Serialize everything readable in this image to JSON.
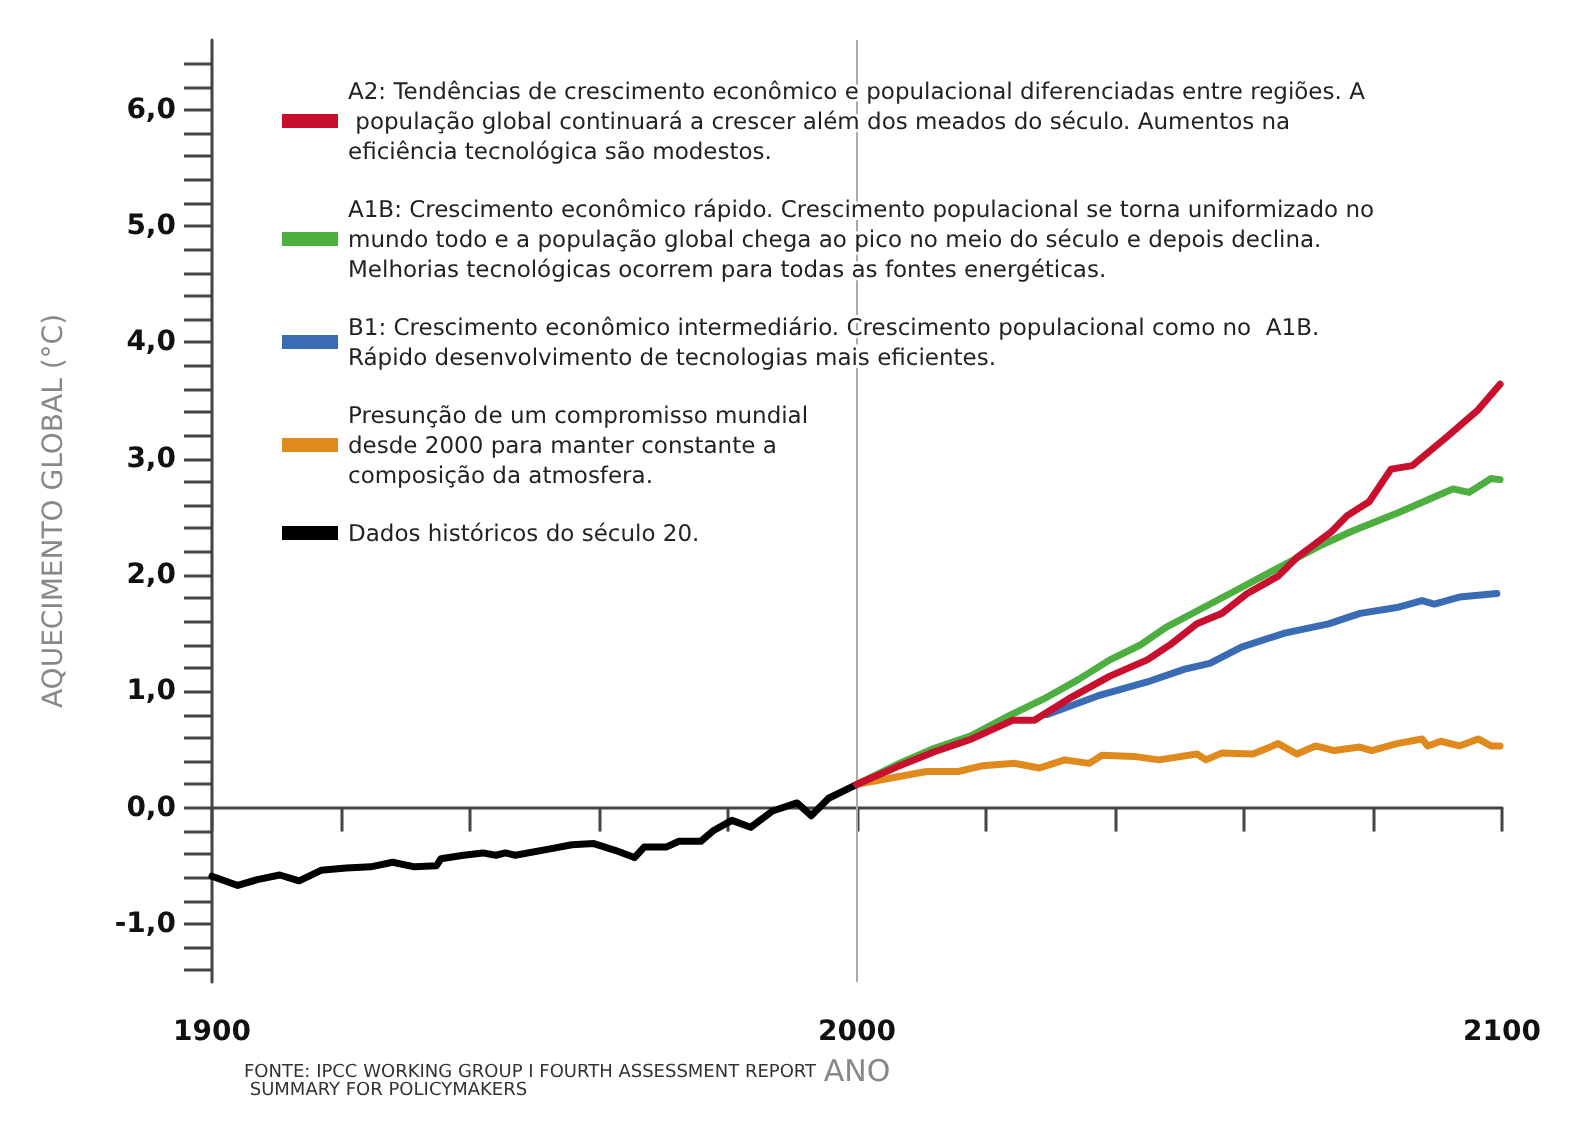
{
  "chart_data": {
    "type": "line",
    "xlabel": "ANO",
    "ylabel": "AQUECIMENTO GLOBAL (°C)",
    "annotations": [
      "FONTE: IPCC WORKING GROUP I FOURTH ASSESSMENT REPORT SUMMARY FOR POLICYMAKERS"
    ],
    "xlim": [
      1900,
      2100
    ],
    "xticks": [
      1900,
      {
        "value": 1920,
        "label": null
      },
      {
        "value": 1940,
        "label": null
      },
      {
        "value": 1960,
        "label": null
      },
      {
        "value": 1980,
        "label": null
      },
      2000,
      {
        "value": 2020,
        "label": null
      },
      {
        "value": 2040,
        "label": null
      },
      {
        "value": 2060,
        "label": null
      },
      {
        "value": 2080,
        "label": null
      },
      2100
    ],
    "ylim": [
      -1.5,
      6.6
    ],
    "yticks": [
      {
        "value": -1.4,
        "label": null
      },
      {
        "value": -1.2,
        "label": null
      },
      {
        "value": -1,
        "label": "-1,0"
      },
      {
        "value": -0.8,
        "label": null
      },
      {
        "value": -0.6,
        "label": null
      },
      {
        "value": -0.4,
        "label": null
      },
      {
        "value": -0.2,
        "label": null
      },
      {
        "value": 0,
        "label": "0,0"
      },
      {
        "value": 0.2,
        "label": null
      },
      {
        "value": 0.4,
        "label": null
      },
      {
        "value": 0.6,
        "label": null
      },
      {
        "value": 0.8,
        "label": null
      },
      {
        "value": 1,
        "label": "1,0"
      },
      {
        "value": 1.2,
        "label": null
      },
      {
        "value": 1.4,
        "label": null
      },
      {
        "value": 1.6,
        "label": null
      },
      {
        "value": 1.8,
        "label": null
      },
      {
        "value": 2,
        "label": "2,0"
      },
      {
        "value": 2.2,
        "label": null
      },
      {
        "value": 2.4,
        "label": null
      },
      {
        "value": 2.6,
        "label": null
      },
      {
        "value": 2.8,
        "label": null
      },
      {
        "value": 3,
        "label": "3,0"
      },
      {
        "value": 3.2,
        "label": null
      },
      {
        "value": 3.4,
        "label": null
      },
      {
        "value": 3.6,
        "label": null
      },
      {
        "value": 3.8,
        "label": null
      },
      {
        "value": 4,
        "label": "4,0"
      },
      {
        "value": 4.2,
        "label": null
      },
      {
        "value": 4.4,
        "label": null
      },
      {
        "value": 4.6,
        "label": null
      },
      {
        "value": 4.8,
        "label": null
      },
      {
        "value": 5,
        "label": "5,0"
      },
      {
        "value": 5.2,
        "label": null
      },
      {
        "value": 5.4,
        "label": null
      },
      {
        "value": 5.6,
        "label": null
      },
      {
        "value": 5.8,
        "label": null
      },
      {
        "value": 6,
        "label": "6,0"
      },
      {
        "value": 6.2,
        "label": null
      },
      {
        "value": 6.4,
        "label": null
      }
    ],
    "grid": false,
    "legend": "top left",
    "marker": "none",
    "line_style": "solid",
    "ref_lines": [
      {
        "axis": "x",
        "value": 2000,
        "label": null,
        "color": "#aaaaaa"
      }
    ],
    "series": [
      {
        "name": "A2: Tendências de crescimento econômico e populacional diferenciadas entre regiões. A população global continuará a crescer além dos meados do século. Aumentos na eficiência tecnológica são modestos.",
        "color": "#c8102e",
        "x": [
          2000,
          2006.2,
          2012,
          2017.8,
          2024.1,
          2027.5,
          2033.3,
          2039.2,
          2045,
          2048.8,
          2052.7,
          2056.6,
          2060.5,
          2065.3,
          2068.2,
          2073.5,
          2076,
          2079.4,
          2082.8,
          2086.1,
          2091.5,
          2096.3,
          2099.7
        ],
        "values": [
          0.2,
          0.35,
          0.48,
          0.59,
          0.75,
          0.75,
          0.95,
          1.13,
          1.27,
          1.41,
          1.58,
          1.67,
          1.84,
          1.99,
          2.15,
          2.37,
          2.51,
          2.63,
          2.91,
          2.94,
          3.19,
          3.42,
          3.64
        ]
      },
      {
        "name": "A1B: Crescimento econômico rápido. Crescimento populacional se torna uniformizado no mundo todo e a população global chega ao pico no meio do século e depois declina. Melhorias tecnológicas ocorrem para todas as fontes energéticas.",
        "color": "#4caf3f",
        "x": [
          2000,
          2006.2,
          2012,
          2017.8,
          2023.6,
          2029.5,
          2034.3,
          2039.2,
          2044,
          2047.9,
          2052.7,
          2058.5,
          2066.3,
          2072.1,
          2076.9,
          2083.7,
          2089.5,
          2092.4,
          2094.9,
          2098.3,
          2099.7
        ],
        "values": [
          0.2,
          0.37,
          0.51,
          0.62,
          0.79,
          0.95,
          1.1,
          1.27,
          1.4,
          1.55,
          1.69,
          1.86,
          2.09,
          2.26,
          2.38,
          2.53,
          2.67,
          2.74,
          2.71,
          2.83,
          2.82
        ]
      },
      {
        "name": "B1: Crescimento econômico intermediário. Crescimento populacional como no  A1B. Rápido desenvolvimento de tecnologias mais eficientes.",
        "color": "#3a6bb5",
        "x": [
          2029.5,
          2037.3,
          2045,
          2050.8,
          2054.7,
          2059.6,
          2066.3,
          2073.1,
          2078,
          2083.7,
          2087.6,
          2089.5,
          2093.4,
          2099.2
        ],
        "values": [
          0.8,
          0.96,
          1.08,
          1.19,
          1.24,
          1.38,
          1.5,
          1.58,
          1.67,
          1.72,
          1.78,
          1.75,
          1.81,
          1.84
        ]
      },
      {
        "name": "Presunção de um compromisso mundial desde 2000 para manter constante a composição da atmosfera.",
        "color": "#e08a1e",
        "x": [
          2000,
          2010.8,
          2015.7,
          2019.5,
          2024.4,
          2028.3,
          2032.2,
          2036,
          2038,
          2042.9,
          2046.8,
          2052.7,
          2054.1,
          2056.6,
          2061.4,
          2065.3,
          2068.2,
          2071.1,
          2074,
          2077.9,
          2079.8,
          2083.7,
          2087.6,
          2088.5,
          2090.5,
          2093.4,
          2096.3,
          2098.3,
          2099.7
        ],
        "values": [
          0.2,
          0.31,
          0.31,
          0.36,
          0.38,
          0.34,
          0.41,
          0.38,
          0.45,
          0.44,
          0.41,
          0.46,
          0.41,
          0.47,
          0.46,
          0.55,
          0.46,
          0.53,
          0.49,
          0.52,
          0.49,
          0.55,
          0.59,
          0.53,
          0.57,
          0.53,
          0.59,
          0.53,
          0.53
        ]
      },
      {
        "name": "Dados históricos do século 20.",
        "color": "#000000",
        "x": [
          1900,
          1904,
          1907,
          1910.5,
          1913.5,
          1916.9,
          1920.8,
          1924.6,
          1928,
          1931.4,
          1934.8,
          1935.5,
          1939,
          1942,
          1944,
          1945.5,
          1947,
          1952,
          1955.8,
          1959.2,
          1962.6,
          1965.5,
          1967,
          1970.4,
          1972.4,
          1975.8,
          1977.7,
          1980.6,
          1983.5,
          1986.9,
          1990.7,
          1992.9,
          1995.6,
          2000
        ],
        "values": [
          -0.59,
          -0.67,
          -0.62,
          -0.58,
          -0.63,
          -0.54,
          -0.52,
          -0.51,
          -0.47,
          -0.51,
          -0.5,
          -0.44,
          -0.41,
          -0.39,
          -0.41,
          -0.39,
          -0.41,
          -0.36,
          -0.32,
          -0.31,
          -0.37,
          -0.43,
          -0.34,
          -0.34,
          -0.29,
          -0.29,
          -0.2,
          -0.11,
          -0.17,
          -0.03,
          0.04,
          -0.07,
          0.08,
          0.2
        ]
      }
    ]
  }
}
